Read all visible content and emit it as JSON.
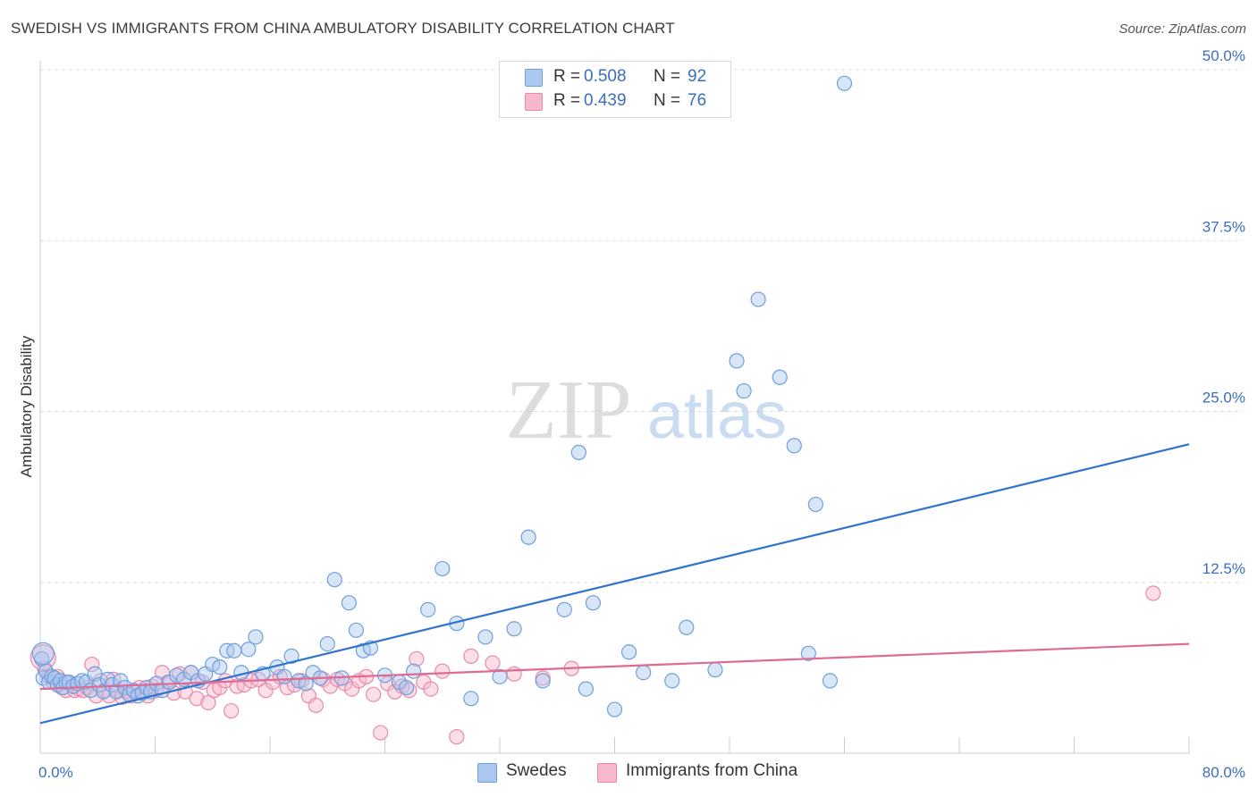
{
  "header": {
    "title": "SWEDISH VS IMMIGRANTS FROM CHINA AMBULATORY DISABILITY CORRELATION CHART",
    "source": "Source: ZipAtlas.com"
  },
  "watermark": {
    "zip": "ZIP",
    "atlas": "atlas"
  },
  "legend_top": {
    "swedes": {
      "r_label": "R =",
      "r_value": "0.508",
      "n_label": "N =",
      "n_value": "92"
    },
    "china": {
      "r_label": "R =",
      "r_value": "0.439",
      "n_label": "N =",
      "n_value": "76"
    }
  },
  "legend_bottom": {
    "swedes": "Swedes",
    "china": "Immigrants from China"
  },
  "colors": {
    "swedes_fill": "#aac8f0",
    "swedes_stroke": "#6f9fdc",
    "swedes_line": "#2f73d0",
    "china_fill": "#f6b8cb",
    "china_stroke": "#e88aaa",
    "china_line": "#e06a93",
    "axis_label": "#3a6ec0",
    "grid": "#dddddd",
    "watermark": "#cccccc",
    "watermark_atlas": "#a9c6ea"
  },
  "chart_data": {
    "type": "scatter",
    "title": "SWEDISH VS IMMIGRANTS FROM CHINA AMBULATORY DISABILITY CORRELATION CHART",
    "xlabel": "",
    "ylabel": "Ambulatory Disability",
    "xlim": [
      0,
      80
    ],
    "ylim": [
      0,
      50
    ],
    "x_tick_labels": [
      {
        "value": 0,
        "label": "0.0%"
      },
      {
        "value": 80,
        "label": "80.0%"
      }
    ],
    "y_tick_labels": [
      {
        "value": 12.5,
        "label": "12.5%"
      },
      {
        "value": 25,
        "label": "25.0%"
      },
      {
        "value": 37.5,
        "label": "37.5%"
      },
      {
        "value": 50,
        "label": "50.0%"
      }
    ],
    "x_minor_ticks": [
      0,
      8,
      16,
      24,
      32,
      40,
      48,
      56,
      64,
      72,
      80
    ],
    "grid": true,
    "series": [
      {
        "name": "Swedes",
        "r": 0.508,
        "n": 92,
        "trend": {
          "x": [
            0,
            80
          ],
          "y": [
            2.2,
            22.6
          ]
        },
        "points": [
          [
            0.1,
            6.9
          ],
          [
            0.2,
            5.5
          ],
          [
            0.4,
            6.0
          ],
          [
            0.6,
            5.2
          ],
          [
            0.8,
            5.6
          ],
          [
            1.0,
            5.5
          ],
          [
            1.2,
            5.0
          ],
          [
            1.4,
            5.3
          ],
          [
            1.6,
            4.8
          ],
          [
            1.8,
            5.2
          ],
          [
            2.0,
            5.2
          ],
          [
            2.3,
            4.9
          ],
          [
            2.6,
            5.1
          ],
          [
            2.9,
            5.3
          ],
          [
            3.2,
            5.2
          ],
          [
            3.5,
            4.6
          ],
          [
            3.8,
            5.8
          ],
          [
            4.1,
            5.0
          ],
          [
            4.4,
            4.5
          ],
          [
            4.7,
            5.4
          ],
          [
            5.0,
            5.0
          ],
          [
            5.3,
            4.5
          ],
          [
            5.6,
            5.3
          ],
          [
            5.9,
            4.8
          ],
          [
            6.2,
            4.3
          ],
          [
            6.5,
            4.6
          ],
          [
            6.8,
            4.2
          ],
          [
            7.1,
            4.4
          ],
          [
            7.4,
            4.8
          ],
          [
            7.7,
            4.5
          ],
          [
            8.1,
            5.1
          ],
          [
            8.5,
            4.6
          ],
          [
            9.0,
            5.2
          ],
          [
            9.5,
            5.7
          ],
          [
            10.0,
            5.4
          ],
          [
            10.5,
            5.9
          ],
          [
            11.0,
            5.3
          ],
          [
            11.5,
            5.8
          ],
          [
            12.0,
            6.5
          ],
          [
            12.5,
            6.3
          ],
          [
            13.0,
            7.5
          ],
          [
            13.5,
            7.5
          ],
          [
            14.0,
            5.9
          ],
          [
            14.5,
            7.6
          ],
          [
            15.0,
            8.5
          ],
          [
            15.5,
            5.8
          ],
          [
            16.5,
            6.3
          ],
          [
            17.0,
            5.6
          ],
          [
            17.5,
            7.1
          ],
          [
            18.0,
            5.3
          ],
          [
            18.5,
            5.1
          ],
          [
            19.0,
            5.9
          ],
          [
            19.5,
            5.5
          ],
          [
            20.0,
            8.0
          ],
          [
            20.5,
            12.7
          ],
          [
            21.0,
            5.5
          ],
          [
            21.5,
            11.0
          ],
          [
            22.0,
            9.0
          ],
          [
            22.5,
            7.5
          ],
          [
            23.0,
            7.7
          ],
          [
            24.0,
            5.7
          ],
          [
            25.0,
            5.2
          ],
          [
            25.5,
            4.8
          ],
          [
            26.0,
            6.0
          ],
          [
            27.0,
            10.5
          ],
          [
            28.0,
            13.5
          ],
          [
            29.0,
            9.5
          ],
          [
            30.0,
            4.0
          ],
          [
            31.0,
            8.5
          ],
          [
            32.0,
            5.6
          ],
          [
            33.0,
            9.1
          ],
          [
            34.0,
            15.8
          ],
          [
            35.0,
            5.3
          ],
          [
            36.5,
            10.5
          ],
          [
            37.5,
            22.0
          ],
          [
            38.0,
            4.7
          ],
          [
            38.5,
            11.0
          ],
          [
            40.0,
            3.2
          ],
          [
            41.0,
            7.4
          ],
          [
            42.0,
            5.9
          ],
          [
            44.0,
            5.3
          ],
          [
            45.0,
            9.2
          ],
          [
            47.0,
            6.1
          ],
          [
            48.5,
            28.7
          ],
          [
            49.0,
            26.5
          ],
          [
            50.0,
            33.2
          ],
          [
            51.5,
            27.5
          ],
          [
            52.5,
            22.5
          ],
          [
            53.5,
            7.3
          ],
          [
            54.0,
            18.2
          ],
          [
            55.0,
            5.3
          ],
          [
            56.0,
            49.0
          ]
        ]
      },
      {
        "name": "Immigrants from China",
        "r": 0.439,
        "n": 76,
        "trend": {
          "x": [
            0,
            80
          ],
          "y": [
            4.7,
            8.0
          ]
        },
        "points": [
          [
            0.3,
            6.2
          ],
          [
            0.6,
            5.6
          ],
          [
            0.9,
            5.2
          ],
          [
            1.2,
            5.6
          ],
          [
            1.5,
            4.8
          ],
          [
            1.8,
            4.6
          ],
          [
            2.1,
            5.1
          ],
          [
            2.4,
            4.6
          ],
          [
            2.7,
            4.7
          ],
          [
            3.0,
            4.6
          ],
          [
            3.3,
            4.8
          ],
          [
            3.6,
            6.5
          ],
          [
            3.9,
            4.2
          ],
          [
            4.2,
            5.3
          ],
          [
            4.5,
            4.6
          ],
          [
            4.8,
            4.2
          ],
          [
            5.1,
            5.4
          ],
          [
            5.4,
            4.6
          ],
          [
            5.7,
            4.1
          ],
          [
            6.0,
            4.5
          ],
          [
            6.3,
            4.2
          ],
          [
            6.6,
            4.5
          ],
          [
            6.9,
            4.8
          ],
          [
            7.2,
            4.5
          ],
          [
            7.5,
            4.2
          ],
          [
            7.8,
            4.9
          ],
          [
            8.1,
            4.6
          ],
          [
            8.5,
            5.9
          ],
          [
            8.9,
            5.2
          ],
          [
            9.3,
            4.4
          ],
          [
            9.7,
            5.8
          ],
          [
            10.1,
            4.5
          ],
          [
            10.5,
            5.9
          ],
          [
            10.9,
            4.0
          ],
          [
            11.3,
            5.2
          ],
          [
            11.7,
            3.7
          ],
          [
            12.1,
            4.6
          ],
          [
            12.5,
            4.8
          ],
          [
            12.9,
            5.3
          ],
          [
            13.3,
            3.1
          ],
          [
            13.7,
            4.9
          ],
          [
            14.2,
            5.0
          ],
          [
            14.7,
            5.3
          ],
          [
            15.2,
            5.4
          ],
          [
            15.7,
            4.6
          ],
          [
            16.2,
            5.2
          ],
          [
            16.7,
            5.6
          ],
          [
            17.2,
            4.8
          ],
          [
            17.7,
            5.0
          ],
          [
            18.2,
            5.3
          ],
          [
            18.7,
            4.2
          ],
          [
            19.2,
            3.5
          ],
          [
            19.7,
            5.4
          ],
          [
            20.2,
            4.9
          ],
          [
            20.7,
            5.4
          ],
          [
            21.2,
            5.1
          ],
          [
            21.7,
            4.7
          ],
          [
            22.2,
            5.3
          ],
          [
            22.7,
            5.6
          ],
          [
            23.2,
            4.3
          ],
          [
            23.7,
            1.5
          ],
          [
            24.2,
            5.1
          ],
          [
            24.7,
            4.5
          ],
          [
            25.2,
            4.9
          ],
          [
            25.7,
            4.6
          ],
          [
            26.2,
            6.9
          ],
          [
            26.7,
            5.2
          ],
          [
            27.2,
            4.7
          ],
          [
            28.0,
            6.0
          ],
          [
            29.0,
            1.2
          ],
          [
            30.0,
            7.1
          ],
          [
            31.5,
            6.6
          ],
          [
            33.0,
            5.8
          ],
          [
            35.0,
            5.5
          ],
          [
            37.0,
            6.2
          ],
          [
            77.5,
            11.7
          ]
        ]
      }
    ]
  }
}
